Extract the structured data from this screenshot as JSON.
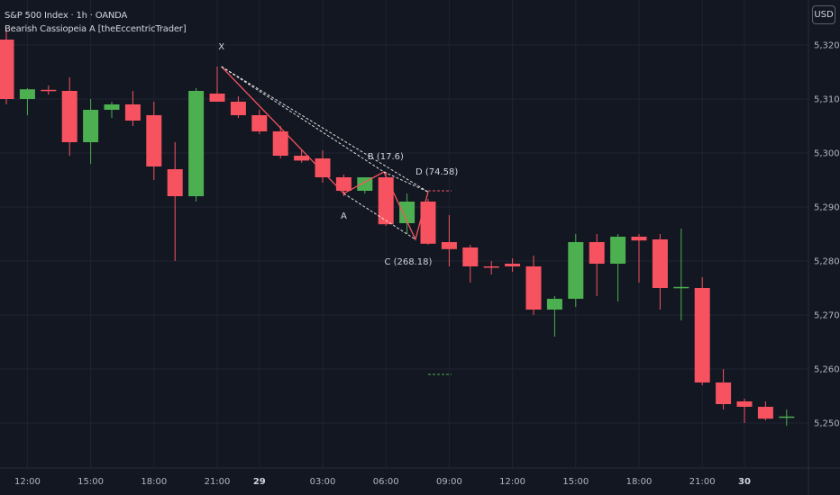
{
  "header": {
    "symbol_line": "S&P 500 Index · 1h · OANDA",
    "indicator_line": "Bearish Cassiopeia A [theEccentricTrader]",
    "currency": "USD"
  },
  "colors": {
    "background": "#131722",
    "grid": "#1f2330",
    "up": "#4caf50",
    "down": "#f7525f",
    "pattern": "#f7525f",
    "dashed": "#ffffff"
  },
  "chart_data": {
    "type": "candlestick",
    "title": "S&P 500 Index · 1h · OANDA",
    "ylim": [
      5245,
      5328
    ],
    "y_ticks": [
      "5,320.0",
      "5,310.0",
      "5,300.0",
      "5,290.0",
      "5,280.0",
      "5,270.0",
      "5,260.0",
      "5,250.0"
    ],
    "y_tick_values": [
      5320,
      5310,
      5300,
      5290,
      5280,
      5270,
      5260,
      5250
    ],
    "x_ticks": [
      {
        "label": "12:00",
        "i": 1,
        "bold": false
      },
      {
        "label": "15:00",
        "i": 4,
        "bold": false
      },
      {
        "label": "18:00",
        "i": 7,
        "bold": false
      },
      {
        "label": "21:00",
        "i": 10,
        "bold": false
      },
      {
        "label": "29",
        "i": 12,
        "bold": true
      },
      {
        "label": "03:00",
        "i": 15,
        "bold": false
      },
      {
        "label": "06:00",
        "i": 18,
        "bold": false
      },
      {
        "label": "09:00",
        "i": 21,
        "bold": false
      },
      {
        "label": "12:00",
        "i": 24,
        "bold": false
      },
      {
        "label": "15:00",
        "i": 27,
        "bold": false
      },
      {
        "label": "18:00",
        "i": 30,
        "bold": false
      },
      {
        "label": "21:00",
        "i": 33,
        "bold": false
      },
      {
        "label": "30",
        "i": 35,
        "bold": true
      }
    ],
    "candles": [
      {
        "o": 5321.0,
        "h": 5323.0,
        "l": 5309.0,
        "c": 5310.0
      },
      {
        "o": 5310.0,
        "h": 5312.0,
        "l": 5307.0,
        "c": 5311.8
      },
      {
        "o": 5311.7,
        "h": 5312.5,
        "l": 5310.8,
        "c": 5311.5
      },
      {
        "o": 5311.5,
        "h": 5314.0,
        "l": 5299.5,
        "c": 5302.0
      },
      {
        "o": 5302.0,
        "h": 5310.0,
        "l": 5298.0,
        "c": 5308.0
      },
      {
        "o": 5308.0,
        "h": 5309.5,
        "l": 5306.5,
        "c": 5309.0
      },
      {
        "o": 5309.0,
        "h": 5311.5,
        "l": 5305.0,
        "c": 5306.0
      },
      {
        "o": 5307.0,
        "h": 5309.5,
        "l": 5295.0,
        "c": 5297.5
      },
      {
        "o": 5297.0,
        "h": 5302.0,
        "l": 5280.0,
        "c": 5292.0
      },
      {
        "o": 5292.0,
        "h": 5312.0,
        "l": 5291.0,
        "c": 5311.5
      },
      {
        "o": 5311.0,
        "h": 5316.0,
        "l": 5310.0,
        "c": 5309.5
      },
      {
        "o": 5309.5,
        "h": 5310.5,
        "l": 5306.5,
        "c": 5307.0
      },
      {
        "o": 5307.0,
        "h": 5308.0,
        "l": 5303.5,
        "c": 5304.0
      },
      {
        "o": 5304.0,
        "h": 5305.0,
        "l": 5299.0,
        "c": 5299.5
      },
      {
        "o": 5299.5,
        "h": 5300.5,
        "l": 5298.2,
        "c": 5298.6
      },
      {
        "o": 5299.0,
        "h": 5300.5,
        "l": 5294.5,
        "c": 5295.5
      },
      {
        "o": 5295.5,
        "h": 5296.0,
        "l": 5292.0,
        "c": 5293.0
      },
      {
        "o": 5293.0,
        "h": 5295.5,
        "l": 5292.5,
        "c": 5295.5
      },
      {
        "o": 5295.5,
        "h": 5296.5,
        "l": 5286.5,
        "c": 5286.8
      },
      {
        "o": 5287.0,
        "h": 5292.5,
        "l": 5285.0,
        "c": 5291.0
      },
      {
        "o": 5291.0,
        "h": 5291.5,
        "l": 5283.0,
        "c": 5283.2
      },
      {
        "o": 5283.5,
        "h": 5288.5,
        "l": 5279.0,
        "c": 5282.2
      },
      {
        "o": 5282.5,
        "h": 5283.0,
        "l": 5276.0,
        "c": 5279.0
      },
      {
        "o": 5279.0,
        "h": 5280.0,
        "l": 5277.5,
        "c": 5278.8
      },
      {
        "o": 5279.5,
        "h": 5280.5,
        "l": 5278.0,
        "c": 5279.0
      },
      {
        "o": 5279.0,
        "h": 5281.0,
        "l": 5270.0,
        "c": 5271.0
      },
      {
        "o": 5271.0,
        "h": 5273.5,
        "l": 5266.0,
        "c": 5273.0
      },
      {
        "o": 5273.0,
        "h": 5285.0,
        "l": 5271.5,
        "c": 5283.5
      },
      {
        "o": 5283.5,
        "h": 5285.0,
        "l": 5273.5,
        "c": 5279.5
      },
      {
        "o": 5279.5,
        "h": 5285.0,
        "l": 5272.5,
        "c": 5284.5
      },
      {
        "o": 5284.5,
        "h": 5285.0,
        "l": 5276.0,
        "c": 5283.8
      },
      {
        "o": 5284.0,
        "h": 5285.0,
        "l": 5271.0,
        "c": 5275.0
      },
      {
        "o": 5275.0,
        "h": 5286.0,
        "l": 5269.0,
        "c": 5275.2
      },
      {
        "o": 5275.0,
        "h": 5277.0,
        "l": 5257.0,
        "c": 5257.5
      },
      {
        "o": 5257.5,
        "h": 5260.0,
        "l": 5252.5,
        "c": 5253.5
      },
      {
        "o": 5254.0,
        "h": 5254.5,
        "l": 5250.0,
        "c": 5253.0
      },
      {
        "o": 5253.0,
        "h": 5254.0,
        "l": 5250.5,
        "c": 5250.8
      },
      {
        "o": 5251.0,
        "h": 5252.5,
        "l": 5249.5,
        "c": 5251.2
      }
    ],
    "pattern": {
      "name": "Bearish Cassiopeia A",
      "points": [
        {
          "label": "X",
          "i": 10.2,
          "price": 5316.0
        },
        {
          "label": "A",
          "i": 16.0,
          "price": 5292.5
        },
        {
          "label": "B (17.6)",
          "i": 17.9,
          "price": 5296.5
        },
        {
          "label": "C (268.18)",
          "i": 19.4,
          "price": 5284.0
        },
        {
          "label": "D (74.58)",
          "i": 20.0,
          "price": 5292.8
        }
      ],
      "d_level": 5293.0,
      "target_level": 5259.0
    }
  }
}
